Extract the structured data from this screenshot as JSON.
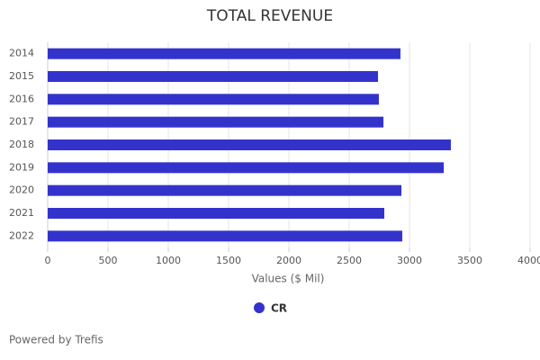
{
  "chart_data": {
    "type": "hbar",
    "title": "TOTAL REVENUE",
    "categories": [
      "2014",
      "2015",
      "2016",
      "2017",
      "2018",
      "2019",
      "2020",
      "2021",
      "2022"
    ],
    "series": [
      {
        "name": "CR",
        "color": "#3333cc",
        "values": [
          2925,
          2739,
          2746,
          2784,
          3343,
          3284,
          2933,
          2791,
          2940
        ]
      }
    ],
    "xlabel": "Values ($ Mil)",
    "xlim": [
      0,
      4000
    ],
    "xticks": [
      0,
      500,
      1000,
      1500,
      2000,
      2500,
      3000,
      3500,
      4000
    ],
    "grid": true,
    "legend": "bottom"
  },
  "footer": "Powered by Trefis"
}
